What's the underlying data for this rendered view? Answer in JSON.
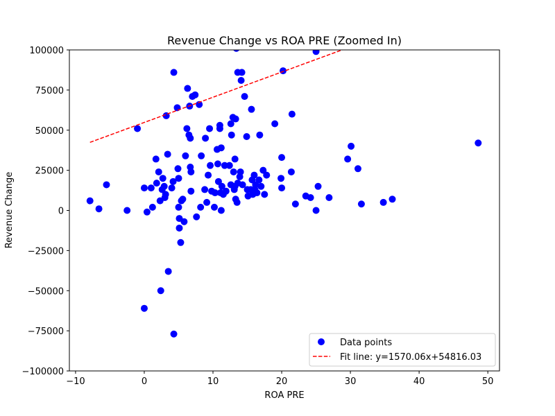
{
  "chart_data": {
    "type": "scatter",
    "title": "Revenue Change vs ROA PRE (Zoomed In)",
    "xlabel": "ROA PRE",
    "ylabel": "Revenue Change",
    "xlim": [
      -10.9,
      51.7
    ],
    "ylim": [
      -100000,
      100000
    ],
    "xticks": [
      -10,
      0,
      10,
      20,
      30,
      40,
      50
    ],
    "yticks": [
      -100000,
      -75000,
      -50000,
      -25000,
      0,
      25000,
      50000,
      75000,
      100000
    ],
    "grid": false,
    "legend_position": "lower-right",
    "colors": {
      "points": "#0000ff",
      "fit_line": "#ff0000"
    },
    "series": [
      {
        "name": "Data points",
        "kind": "scatter",
        "points": [
          [
            -7.9,
            6000
          ],
          [
            -6.6,
            1000
          ],
          [
            -5.5,
            16000
          ],
          [
            -2.5,
            0
          ],
          [
            -1.0,
            51000
          ],
          [
            0.0,
            14000
          ],
          [
            0.4,
            -1000
          ],
          [
            0.0,
            -61000
          ],
          [
            1.0,
            14000
          ],
          [
            1.2,
            2000
          ],
          [
            1.7,
            32000
          ],
          [
            1.8,
            17000
          ],
          [
            2.1,
            24000
          ],
          [
            2.3,
            6000
          ],
          [
            2.4,
            -50000
          ],
          [
            2.6,
            13000
          ],
          [
            2.7,
            20000
          ],
          [
            2.9,
            15000
          ],
          [
            3.0,
            8000
          ],
          [
            3.1,
            10000
          ],
          [
            3.2,
            59000
          ],
          [
            3.4,
            35000
          ],
          [
            3.5,
            -38000
          ],
          [
            4.0,
            14000
          ],
          [
            4.3,
            86000
          ],
          [
            4.2,
            18000
          ],
          [
            4.3,
            -77000
          ],
          [
            4.8,
            64000
          ],
          [
            4.9,
            26000
          ],
          [
            5.0,
            20000
          ],
          [
            5.0,
            2000
          ],
          [
            5.1,
            -5000
          ],
          [
            5.1,
            -11000
          ],
          [
            5.3,
            -20000
          ],
          [
            5.4,
            6000
          ],
          [
            5.6,
            7000
          ],
          [
            5.8,
            -7000
          ],
          [
            6.0,
            34000
          ],
          [
            6.2,
            51000
          ],
          [
            6.3,
            76000
          ],
          [
            6.5,
            47000
          ],
          [
            6.6,
            65000
          ],
          [
            6.7,
            27000
          ],
          [
            6.7,
            45000
          ],
          [
            6.8,
            24000
          ],
          [
            6.8,
            12000
          ],
          [
            7.0,
            71000
          ],
          [
            7.4,
            72000
          ],
          [
            7.6,
            -4000
          ],
          [
            8.0,
            66000
          ],
          [
            8.2,
            2000
          ],
          [
            8.3,
            34000
          ],
          [
            8.8,
            13000
          ],
          [
            8.9,
            45000
          ],
          [
            9.1,
            5000
          ],
          [
            9.3,
            22000
          ],
          [
            9.5,
            51000
          ],
          [
            9.6,
            28000
          ],
          [
            9.8,
            12000
          ],
          [
            10.2,
            2000
          ],
          [
            10.3,
            11000
          ],
          [
            10.6,
            38000
          ],
          [
            10.7,
            29000
          ],
          [
            10.8,
            18000
          ],
          [
            11.0,
            51000
          ],
          [
            11.0,
            53000
          ],
          [
            11.1,
            11000
          ],
          [
            11.2,
            39000
          ],
          [
            11.2,
            0
          ],
          [
            11.3,
            15000
          ],
          [
            11.5,
            10000
          ],
          [
            11.7,
            28000
          ],
          [
            11.9,
            12000
          ],
          [
            12.4,
            28000
          ],
          [
            12.6,
            54000
          ],
          [
            12.6,
            16000
          ],
          [
            12.7,
            47000
          ],
          [
            12.9,
            58000
          ],
          [
            13.0,
            24000
          ],
          [
            13.1,
            13000
          ],
          [
            13.2,
            15000
          ],
          [
            13.2,
            32000
          ],
          [
            13.3,
            57000
          ],
          [
            13.3,
            7000
          ],
          [
            13.5,
            5000
          ],
          [
            13.6,
            17000
          ],
          [
            13.4,
            101000
          ],
          [
            13.6,
            86000
          ],
          [
            13.9,
            21000
          ],
          [
            14.0,
            24000
          ],
          [
            14.1,
            81000
          ],
          [
            14.2,
            86000
          ],
          [
            14.3,
            16000
          ],
          [
            14.6,
            71000
          ],
          [
            14.9,
            46000
          ],
          [
            15.0,
            13000
          ],
          [
            15.1,
            9000
          ],
          [
            15.5,
            13000
          ],
          [
            15.6,
            63000
          ],
          [
            15.7,
            19000
          ],
          [
            15.8,
            10000
          ],
          [
            16.0,
            22000
          ],
          [
            16.1,
            13000
          ],
          [
            16.2,
            16000
          ],
          [
            16.4,
            11000
          ],
          [
            16.7,
            19000
          ],
          [
            16.8,
            47000
          ],
          [
            17.0,
            15000
          ],
          [
            17.3,
            25000
          ],
          [
            17.5,
            10000
          ],
          [
            17.8,
            22000
          ],
          [
            19.0,
            54000
          ],
          [
            19.9,
            20000
          ],
          [
            20.0,
            14000
          ],
          [
            20.0,
            33000
          ],
          [
            20.2,
            87000
          ],
          [
            21.4,
            24000
          ],
          [
            21.5,
            60000
          ],
          [
            22.0,
            4000
          ],
          [
            23.5,
            9000
          ],
          [
            24.2,
            8000
          ],
          [
            25.0,
            0
          ],
          [
            25.0,
            99000
          ],
          [
            25.3,
            15000
          ],
          [
            26.9,
            8000
          ],
          [
            29.6,
            32000
          ],
          [
            30.1,
            40000
          ],
          [
            31.1,
            26000
          ],
          [
            31.6,
            4000
          ],
          [
            34.8,
            5000
          ],
          [
            36.1,
            7000
          ],
          [
            48.6,
            42000
          ]
        ]
      },
      {
        "name": "Fit line: y=1570.06x+54816.03",
        "kind": "line",
        "style": "dashed",
        "slope": 1570.06,
        "intercept": 54816.03,
        "x_range": [
          -7.9,
          48.6
        ]
      }
    ]
  }
}
